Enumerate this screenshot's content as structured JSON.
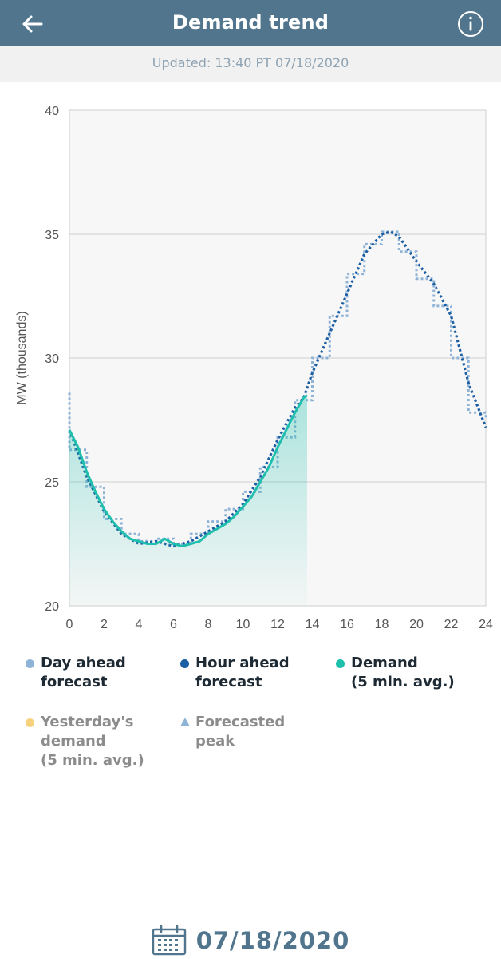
{
  "header": {
    "title": "Demand trend"
  },
  "updated": {
    "text": "Updated: 13:40 PT 07/18/2020"
  },
  "legend": {
    "day_ahead": {
      "line1": "Day ahead",
      "line2": "forecast",
      "color": "#8fb3d6"
    },
    "hour_ahead": {
      "line1": "Hour ahead",
      "line2": "forecast",
      "color": "#1d5fa3"
    },
    "demand": {
      "line1": "Demand",
      "line2": "(5 min. avg.)",
      "color": "#1fbfad"
    },
    "yesterday": {
      "line1": "Yesterday's",
      "line2": "demand",
      "line3": "(5 min. avg.)",
      "color": "#f7d27c"
    },
    "peak": {
      "line1": "Forecasted",
      "line2": "peak",
      "color": "#8fb3d6"
    }
  },
  "footer": {
    "date": "07/18/2020"
  },
  "chart_data": {
    "type": "line",
    "xlabel": "",
    "ylabel": "MW (thousands)",
    "xlim": [
      0,
      24
    ],
    "ylim": [
      20,
      40
    ],
    "x_ticks": [
      "0",
      "2",
      "4",
      "6",
      "8",
      "10",
      "12",
      "14",
      "16",
      "18",
      "20",
      "22",
      "24"
    ],
    "y_ticks": [
      "20",
      "25",
      "30",
      "35",
      "40"
    ],
    "grid": true,
    "legend_position": "bottom",
    "series": [
      {
        "name": "Day ahead forecast",
        "style": "step-dotted",
        "color": "#8fb3d6",
        "x": [
          0,
          1,
          2,
          3,
          4,
          5,
          6,
          7,
          8,
          9,
          10,
          11,
          12,
          13,
          14,
          15,
          16,
          17,
          18,
          19,
          20,
          21,
          22,
          23,
          24
        ],
        "y": [
          26.3,
          24.8,
          23.5,
          22.9,
          22.6,
          22.7,
          22.5,
          22.9,
          23.4,
          23.9,
          24.6,
          25.6,
          26.8,
          28.3,
          30.0,
          31.7,
          33.4,
          34.6,
          35.1,
          34.3,
          33.2,
          32.1,
          30.0,
          27.8,
          27.5
        ]
      },
      {
        "name": "Hour ahead forecast",
        "style": "dotted",
        "color": "#1d5fa3",
        "x": [
          0,
          1,
          2,
          3,
          4,
          5,
          6,
          7,
          8,
          9,
          10,
          11,
          12,
          13,
          13.5,
          14,
          15,
          16,
          17,
          18,
          18.5,
          19,
          20,
          21,
          22,
          23,
          24
        ],
        "y": [
          27.1,
          25.2,
          23.8,
          22.9,
          22.5,
          22.6,
          22.4,
          22.6,
          23.0,
          23.4,
          24.1,
          25.2,
          26.7,
          28.0,
          28.4,
          29.4,
          31.0,
          32.6,
          34.2,
          35.0,
          35.1,
          34.9,
          33.9,
          33.0,
          31.7,
          29.0,
          27.2
        ]
      },
      {
        "name": "Demand (5 min. avg.)",
        "style": "solid-area",
        "color": "#1fbfad",
        "x": [
          0,
          0.5,
          1,
          1.5,
          2,
          2.5,
          3,
          3.5,
          4,
          4.5,
          5,
          5.5,
          6,
          6.5,
          7,
          7.5,
          8,
          8.5,
          9,
          9.5,
          10,
          10.5,
          11,
          11.5,
          12,
          12.5,
          13,
          13.5,
          13.7
        ],
        "y": [
          27.1,
          26.4,
          25.4,
          24.6,
          23.9,
          23.4,
          23.0,
          22.7,
          22.6,
          22.5,
          22.5,
          22.7,
          22.5,
          22.4,
          22.5,
          22.6,
          22.9,
          23.1,
          23.3,
          23.6,
          24.0,
          24.4,
          25.0,
          25.6,
          26.4,
          27.1,
          27.8,
          28.4,
          28.5
        ]
      }
    ]
  }
}
